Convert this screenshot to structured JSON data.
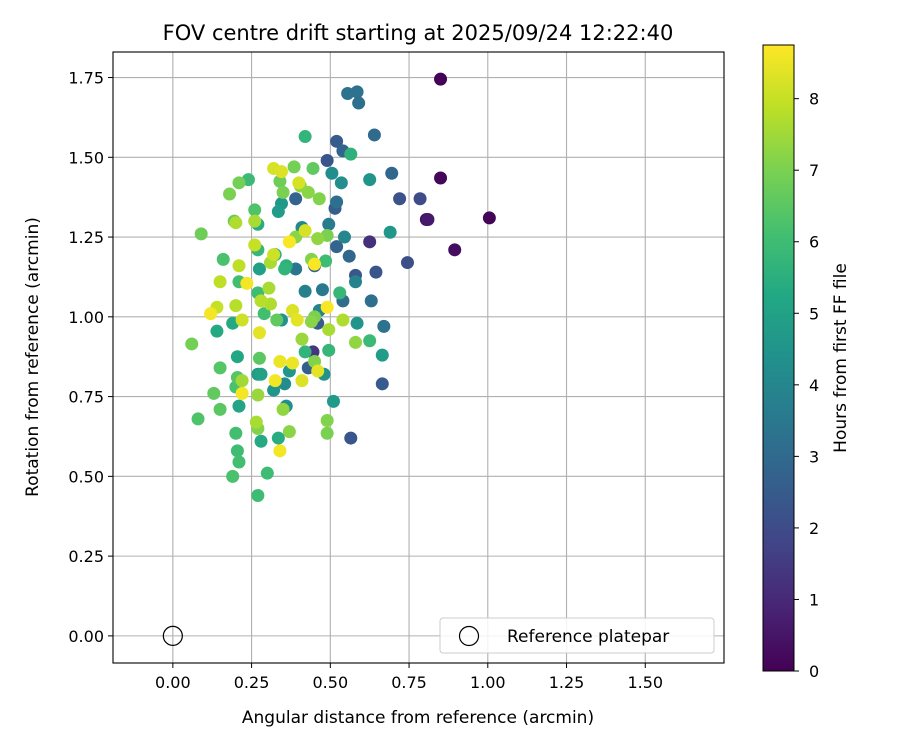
{
  "chart_data": {
    "type": "scatter",
    "title": "FOV centre drift starting at 2025/09/24 12:22:40",
    "xlabel": "Angular distance from reference (arcmin)",
    "ylabel": "Rotation from reference (arcmin)",
    "xlim": [
      -0.19,
      1.75
    ],
    "ylim": [
      -0.085,
      1.83
    ],
    "grid": true,
    "xticks": [
      "0.00",
      "0.25",
      "0.50",
      "0.75",
      "1.00",
      "1.25",
      "1.50"
    ],
    "yticks": [
      "0.00",
      "0.25",
      "0.50",
      "0.75",
      "1.00",
      "1.25",
      "1.50",
      "1.75"
    ],
    "colorbar": {
      "label": "Hours from first FF file",
      "colormap": "viridis",
      "range": [
        0,
        8.75
      ],
      "ticks": [
        "0",
        "1",
        "2",
        "3",
        "4",
        "5",
        "6",
        "7",
        "8"
      ]
    },
    "legend": {
      "label": "Reference platepar",
      "position": "lower-right"
    },
    "reference": {
      "x": 0.0,
      "y": 0.0
    },
    "series": [
      {
        "name": "FOV centre",
        "points": [
          {
            "x": 0.85,
            "y": 1.745,
            "c": 0.05
          },
          {
            "x": 0.85,
            "y": 1.435,
            "c": 0.15
          },
          {
            "x": 1.005,
            "y": 1.31,
            "c": 0.1
          },
          {
            "x": 0.805,
            "y": 1.305,
            "c": 0.3
          },
          {
            "x": 0.81,
            "y": 1.305,
            "c": 0.6
          },
          {
            "x": 0.895,
            "y": 1.21,
            "c": 0.3
          },
          {
            "x": 0.625,
            "y": 1.235,
            "c": 1.2
          },
          {
            "x": 0.445,
            "y": 0.89,
            "c": 1.4
          },
          {
            "x": 0.72,
            "y": 1.37,
            "c": 2.2
          },
          {
            "x": 0.785,
            "y": 1.37,
            "c": 2.0
          },
          {
            "x": 0.745,
            "y": 1.17,
            "c": 2.1
          },
          {
            "x": 0.645,
            "y": 1.14,
            "c": 2.3
          },
          {
            "x": 0.58,
            "y": 1.13,
            "c": 2.4
          },
          {
            "x": 0.565,
            "y": 0.62,
            "c": 2.3
          },
          {
            "x": 0.665,
            "y": 0.79,
            "c": 2.5
          },
          {
            "x": 0.49,
            "y": 1.49,
            "c": 2.3
          },
          {
            "x": 0.52,
            "y": 1.55,
            "c": 2.5
          },
          {
            "x": 0.515,
            "y": 1.34,
            "c": 2.6
          },
          {
            "x": 0.52,
            "y": 1.22,
            "c": 2.8
          },
          {
            "x": 0.45,
            "y": 1.16,
            "c": 2.7
          },
          {
            "x": 0.39,
            "y": 1.37,
            "c": 2.8
          },
          {
            "x": 0.43,
            "y": 0.84,
            "c": 2.6
          },
          {
            "x": 0.54,
            "y": 1.52,
            "c": 2.8
          },
          {
            "x": 0.56,
            "y": 1.19,
            "c": 2.9
          },
          {
            "x": 0.46,
            "y": 0.98,
            "c": 2.5
          },
          {
            "x": 0.64,
            "y": 1.57,
            "c": 3.0
          },
          {
            "x": 0.695,
            "y": 1.45,
            "c": 2.9
          },
          {
            "x": 0.555,
            "y": 1.7,
            "c": 3.3
          },
          {
            "x": 0.585,
            "y": 1.705,
            "c": 3.3
          },
          {
            "x": 0.59,
            "y": 1.67,
            "c": 3.2
          },
          {
            "x": 0.52,
            "y": 1.36,
            "c": 3.2
          },
          {
            "x": 0.63,
            "y": 1.05,
            "c": 3.2
          },
          {
            "x": 0.54,
            "y": 1.05,
            "c": 3.1
          },
          {
            "x": 0.67,
            "y": 0.97,
            "c": 3.3
          },
          {
            "x": 0.39,
            "y": 1.15,
            "c": 3.4
          },
          {
            "x": 0.475,
            "y": 1.085,
            "c": 3.5
          },
          {
            "x": 0.495,
            "y": 1.29,
            "c": 3.6
          },
          {
            "x": 0.58,
            "y": 1.11,
            "c": 3.9
          },
          {
            "x": 0.545,
            "y": 1.25,
            "c": 4.0
          },
          {
            "x": 0.42,
            "y": 1.08,
            "c": 3.8
          },
          {
            "x": 0.465,
            "y": 1.02,
            "c": 3.9
          },
          {
            "x": 0.41,
            "y": 1.28,
            "c": 4.1
          },
          {
            "x": 0.505,
            "y": 1.45,
            "c": 4.2
          },
          {
            "x": 0.535,
            "y": 1.42,
            "c": 4.3
          },
          {
            "x": 0.625,
            "y": 1.43,
            "c": 4.5
          },
          {
            "x": 0.69,
            "y": 1.265,
            "c": 4.6
          },
          {
            "x": 0.585,
            "y": 0.98,
            "c": 4.5
          },
          {
            "x": 0.665,
            "y": 0.88,
            "c": 4.8
          },
          {
            "x": 0.51,
            "y": 0.735,
            "c": 4.7
          },
          {
            "x": 0.48,
            "y": 0.82,
            "c": 4.4
          },
          {
            "x": 0.37,
            "y": 0.83,
            "c": 4.6
          },
          {
            "x": 0.36,
            "y": 0.72,
            "c": 4.3
          },
          {
            "x": 0.355,
            "y": 0.79,
            "c": 4.2
          },
          {
            "x": 0.32,
            "y": 0.77,
            "c": 4.5
          },
          {
            "x": 0.345,
            "y": 0.99,
            "c": 4.4
          },
          {
            "x": 0.345,
            "y": 1.355,
            "c": 4.6
          },
          {
            "x": 0.335,
            "y": 1.33,
            "c": 4.8
          },
          {
            "x": 0.275,
            "y": 1.15,
            "c": 4.9
          },
          {
            "x": 0.27,
            "y": 0.82,
            "c": 4.7
          },
          {
            "x": 0.28,
            "y": 0.82,
            "c": 5.0
          },
          {
            "x": 0.21,
            "y": 0.72,
            "c": 5.1
          },
          {
            "x": 0.19,
            "y": 0.98,
            "c": 5.3
          },
          {
            "x": 0.14,
            "y": 0.955,
            "c": 5.3
          },
          {
            "x": 0.205,
            "y": 0.875,
            "c": 5.2
          },
          {
            "x": 0.27,
            "y": 1.29,
            "c": 5.4
          },
          {
            "x": 0.325,
            "y": 1.195,
            "c": 5.5
          },
          {
            "x": 0.28,
            "y": 0.61,
            "c": 5.3
          },
          {
            "x": 0.335,
            "y": 0.62,
            "c": 5.4
          },
          {
            "x": 0.36,
            "y": 1.16,
            "c": 5.6
          },
          {
            "x": 0.355,
            "y": 1.15,
            "c": 5.7
          },
          {
            "x": 0.42,
            "y": 1.565,
            "c": 5.7
          },
          {
            "x": 0.565,
            "y": 1.51,
            "c": 5.6
          },
          {
            "x": 0.625,
            "y": 0.925,
            "c": 5.9
          },
          {
            "x": 0.495,
            "y": 0.895,
            "c": 5.8
          },
          {
            "x": 0.53,
            "y": 1.075,
            "c": 5.8
          },
          {
            "x": 0.485,
            "y": 1.175,
            "c": 6.0
          },
          {
            "x": 0.42,
            "y": 0.89,
            "c": 5.7
          },
          {
            "x": 0.27,
            "y": 1.21,
            "c": 5.8
          },
          {
            "x": 0.27,
            "y": 1.075,
            "c": 6.0
          },
          {
            "x": 0.29,
            "y": 1.01,
            "c": 6.1
          },
          {
            "x": 0.24,
            "y": 1.43,
            "c": 5.9
          },
          {
            "x": 0.21,
            "y": 1.11,
            "c": 6.1
          },
          {
            "x": 0.16,
            "y": 1.18,
            "c": 6.2
          },
          {
            "x": 0.205,
            "y": 0.58,
            "c": 6.0
          },
          {
            "x": 0.2,
            "y": 0.635,
            "c": 6.1
          },
          {
            "x": 0.2,
            "y": 0.78,
            "c": 6.2
          },
          {
            "x": 0.15,
            "y": 0.84,
            "c": 6.4
          },
          {
            "x": 0.21,
            "y": 0.545,
            "c": 6.1
          },
          {
            "x": 0.19,
            "y": 0.5,
            "c": 6.2
          },
          {
            "x": 0.3,
            "y": 0.51,
            "c": 6.0
          },
          {
            "x": 0.27,
            "y": 0.44,
            "c": 6.0
          },
          {
            "x": 0.08,
            "y": 0.68,
            "c": 6.3
          },
          {
            "x": 0.15,
            "y": 0.71,
            "c": 6.5
          },
          {
            "x": 0.13,
            "y": 0.76,
            "c": 6.6
          },
          {
            "x": 0.205,
            "y": 0.81,
            "c": 6.4
          },
          {
            "x": 0.275,
            "y": 0.87,
            "c": 6.5
          },
          {
            "x": 0.33,
            "y": 0.99,
            "c": 6.6
          },
          {
            "x": 0.26,
            "y": 1.335,
            "c": 6.3
          },
          {
            "x": 0.09,
            "y": 1.26,
            "c": 6.8
          },
          {
            "x": 0.06,
            "y": 0.915,
            "c": 6.9
          },
          {
            "x": 0.195,
            "y": 1.3,
            "c": 6.7
          },
          {
            "x": 0.21,
            "y": 1.42,
            "c": 6.9
          },
          {
            "x": 0.18,
            "y": 1.385,
            "c": 7.0
          },
          {
            "x": 0.34,
            "y": 1.425,
            "c": 6.8
          },
          {
            "x": 0.385,
            "y": 1.47,
            "c": 6.9
          },
          {
            "x": 0.445,
            "y": 1.465,
            "c": 6.6
          },
          {
            "x": 0.465,
            "y": 1.37,
            "c": 7.1
          },
          {
            "x": 0.43,
            "y": 1.39,
            "c": 7.2
          },
          {
            "x": 0.405,
            "y": 1.41,
            "c": 7.3
          },
          {
            "x": 0.35,
            "y": 1.39,
            "c": 7.0
          },
          {
            "x": 0.49,
            "y": 1.255,
            "c": 7.0
          },
          {
            "x": 0.39,
            "y": 1.25,
            "c": 7.2
          },
          {
            "x": 0.46,
            "y": 1.245,
            "c": 7.3
          },
          {
            "x": 0.44,
            "y": 1.18,
            "c": 7.1
          },
          {
            "x": 0.45,
            "y": 1.0,
            "c": 7.0
          },
          {
            "x": 0.44,
            "y": 0.985,
            "c": 7.2
          },
          {
            "x": 0.41,
            "y": 0.93,
            "c": 7.4
          },
          {
            "x": 0.45,
            "y": 0.86,
            "c": 7.1
          },
          {
            "x": 0.49,
            "y": 0.675,
            "c": 7.1
          },
          {
            "x": 0.49,
            "y": 0.635,
            "c": 7.0
          },
          {
            "x": 0.37,
            "y": 0.64,
            "c": 7.2
          },
          {
            "x": 0.35,
            "y": 0.71,
            "c": 7.3
          },
          {
            "x": 0.27,
            "y": 0.65,
            "c": 7.1
          },
          {
            "x": 0.265,
            "y": 0.67,
            "c": 7.6
          },
          {
            "x": 0.27,
            "y": 0.755,
            "c": 7.4
          },
          {
            "x": 0.22,
            "y": 0.8,
            "c": 7.5
          },
          {
            "x": 0.58,
            "y": 0.92,
            "c": 7.3
          },
          {
            "x": 0.495,
            "y": 0.96,
            "c": 7.6
          },
          {
            "x": 0.54,
            "y": 0.99,
            "c": 7.7
          },
          {
            "x": 0.31,
            "y": 1.04,
            "c": 7.7
          },
          {
            "x": 0.28,
            "y": 1.05,
            "c": 7.8
          },
          {
            "x": 0.305,
            "y": 1.09,
            "c": 7.6
          },
          {
            "x": 0.31,
            "y": 1.17,
            "c": 7.6
          },
          {
            "x": 0.26,
            "y": 1.3,
            "c": 7.6
          },
          {
            "x": 0.2,
            "y": 1.295,
            "c": 7.7
          },
          {
            "x": 0.2,
            "y": 1.035,
            "c": 7.8
          },
          {
            "x": 0.15,
            "y": 1.11,
            "c": 7.9
          },
          {
            "x": 0.14,
            "y": 1.03,
            "c": 8.0
          },
          {
            "x": 0.21,
            "y": 1.16,
            "c": 7.9
          },
          {
            "x": 0.22,
            "y": 0.99,
            "c": 8.1
          },
          {
            "x": 0.26,
            "y": 1.225,
            "c": 8.0
          },
          {
            "x": 0.32,
            "y": 1.195,
            "c": 8.1
          },
          {
            "x": 0.32,
            "y": 1.465,
            "c": 8.2
          },
          {
            "x": 0.345,
            "y": 1.455,
            "c": 8.3
          },
          {
            "x": 0.4,
            "y": 1.42,
            "c": 8.2
          },
          {
            "x": 0.42,
            "y": 1.27,
            "c": 8.2
          },
          {
            "x": 0.38,
            "y": 1.02,
            "c": 8.3
          },
          {
            "x": 0.395,
            "y": 0.99,
            "c": 8.4
          },
          {
            "x": 0.46,
            "y": 0.83,
            "c": 8.4
          },
          {
            "x": 0.38,
            "y": 0.855,
            "c": 8.5
          },
          {
            "x": 0.34,
            "y": 0.86,
            "c": 8.5
          },
          {
            "x": 0.41,
            "y": 0.8,
            "c": 8.3
          },
          {
            "x": 0.325,
            "y": 0.8,
            "c": 8.6
          },
          {
            "x": 0.34,
            "y": 0.58,
            "c": 8.6
          },
          {
            "x": 0.12,
            "y": 1.01,
            "c": 8.6
          },
          {
            "x": 0.235,
            "y": 1.105,
            "c": 8.6
          },
          {
            "x": 0.275,
            "y": 0.95,
            "c": 8.4
          },
          {
            "x": 0.22,
            "y": 0.76,
            "c": 8.6
          },
          {
            "x": 0.37,
            "y": 1.235,
            "c": 8.7
          },
          {
            "x": 0.45,
            "y": 1.165,
            "c": 8.7
          },
          {
            "x": 0.49,
            "y": 1.03,
            "c": 8.7
          }
        ]
      }
    ]
  }
}
